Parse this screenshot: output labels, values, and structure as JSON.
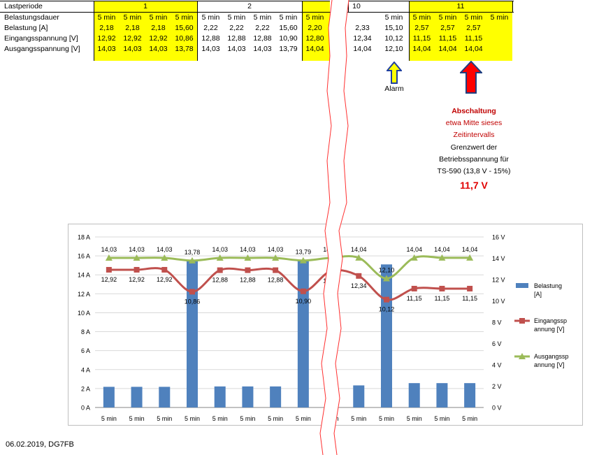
{
  "table": {
    "row_labels": [
      "Lastperiode",
      "Belastungsdauer",
      "Belastung [A]",
      "Eingangsspannung [V]",
      "Ausgangsspannung [V]"
    ],
    "period_labels": [
      "1",
      "2",
      "10",
      "11"
    ],
    "columns": [
      {
        "dauer": "5 min",
        "bel": "2,18",
        "ein": "12,92",
        "aus": "14,03"
      },
      {
        "dauer": "5 min",
        "bel": "2,18",
        "ein": "12,92",
        "aus": "14,03"
      },
      {
        "dauer": "5 min",
        "bel": "2,18",
        "ein": "12,92",
        "aus": "14,03"
      },
      {
        "dauer": "5 min",
        "bel": "15,60",
        "ein": "10,86",
        "aus": "13,78"
      },
      {
        "dauer": "5 min",
        "bel": "2,22",
        "ein": "12,88",
        "aus": "14,03"
      },
      {
        "dauer": "5 min",
        "bel": "2,22",
        "ein": "12,88",
        "aus": "14,03"
      },
      {
        "dauer": "5 min",
        "bel": "2,22",
        "ein": "12,88",
        "aus": "14,03"
      },
      {
        "dauer": "5 min",
        "bel": "15,60",
        "ein": "10,90",
        "aus": "13,79"
      },
      {
        "dauer": "5 min",
        "bel": "2,20",
        "ein": "12,80",
        "aus": "14,04"
      },
      {
        "dauer": "",
        "bel": "2,33",
        "ein": "12,34",
        "aus": "14,04"
      },
      {
        "dauer": "5 min",
        "bel": "15,10",
        "ein": "10,12",
        "aus": "12,10"
      },
      {
        "dauer": "5 min",
        "bel": "2,57",
        "ein": "11,15",
        "aus": "14,04"
      },
      {
        "dauer": "5 min",
        "bel": "2,57",
        "ein": "11,15",
        "aus": "14,04"
      },
      {
        "dauer": "5 min",
        "bel": "2,57",
        "ein": "11,15",
        "aus": "14,04"
      },
      {
        "dauer": "5 min",
        "bel": "",
        "ein": "",
        "aus": ""
      }
    ],
    "yellow_color": "#ffff00"
  },
  "annotations": {
    "alarm_label": "Alarm",
    "abschaltung_title": "Abschaltung",
    "abschaltung_sub1": "etwa Mitte sieses",
    "abschaltung_sub2": "Zeitintervalls",
    "grenz1": "Grenzwert der",
    "grenz2": "Betriebsspannung für",
    "grenz3": "TS-590 (13,8 V - 15%)",
    "grenzwert": "11,7 V",
    "alarm_arrow_color": "#ffff00",
    "abschaltung_arrow_color": "#ff0000",
    "accent_red": "#cc0000"
  },
  "footer": {
    "date_author": "06.02.2019, DG7FB"
  },
  "chart_data": {
    "type": "bar",
    "categories": [
      "5 min",
      "5 min",
      "5 min",
      "5 min",
      "5 min",
      "5 min",
      "5 min",
      "5 min",
      "5 min",
      "5 min",
      "5 min",
      "5 min",
      "5 min",
      "5 min"
    ],
    "y_left": {
      "ticks": [
        "0 A",
        "2 A",
        "4 A",
        "6 A",
        "8 A",
        "10 A",
        "12 A",
        "14 A",
        "16 A",
        "18 A"
      ],
      "ylim": [
        0,
        18
      ]
    },
    "y_right": {
      "ticks": [
        "0 V",
        "2 V",
        "4 V",
        "6 V",
        "8 V",
        "10 V",
        "12 V",
        "14 V",
        "16 V"
      ],
      "ylim": [
        0,
        16
      ]
    },
    "grid": true,
    "legend_position": "right",
    "series": [
      {
        "name": "Belastung [A]",
        "type": "bar",
        "axis": "left",
        "color": "#4f81bd",
        "values": [
          2.18,
          2.18,
          2.18,
          15.6,
          2.22,
          2.22,
          2.22,
          15.6,
          2.2,
          2.33,
          15.1,
          2.57,
          2.57,
          2.57
        ]
      },
      {
        "name": "Eingangsspannung [V]",
        "type": "line",
        "axis": "right",
        "color": "#c0504d",
        "values": [
          12.92,
          12.92,
          12.92,
          10.86,
          12.88,
          12.88,
          12.88,
          10.9,
          12.8,
          12.34,
          10.12,
          11.15,
          11.15,
          11.15
        ],
        "labels": [
          "12,92",
          "12,92",
          "12,92",
          "10,86",
          "12,88",
          "12,88",
          "12,88",
          "10,90",
          "12,80",
          "12,34",
          "10,12",
          "11,15",
          "11,15",
          "11,15"
        ]
      },
      {
        "name": "Ausgangsspannung [V]",
        "type": "line",
        "axis": "right",
        "color": "#9bbb59",
        "values": [
          14.03,
          14.03,
          14.03,
          13.78,
          14.03,
          14.03,
          14.03,
          13.79,
          14.04,
          14.04,
          12.1,
          14.04,
          14.04,
          14.04
        ],
        "labels": [
          "14,03",
          "14,03",
          "14,03",
          "13,78",
          "14,03",
          "14,03",
          "14,03",
          "13,79",
          "14,04",
          "14,04",
          "12,10",
          "14,04",
          "14,04",
          "14,04"
        ]
      }
    ],
    "legend": [
      {
        "line1": "Belastung",
        "line2": "[A]"
      },
      {
        "line1": "Eingangssp",
        "line2": "annung [V]"
      },
      {
        "line1": "Ausgangssp",
        "line2": "annung [V]"
      }
    ]
  }
}
